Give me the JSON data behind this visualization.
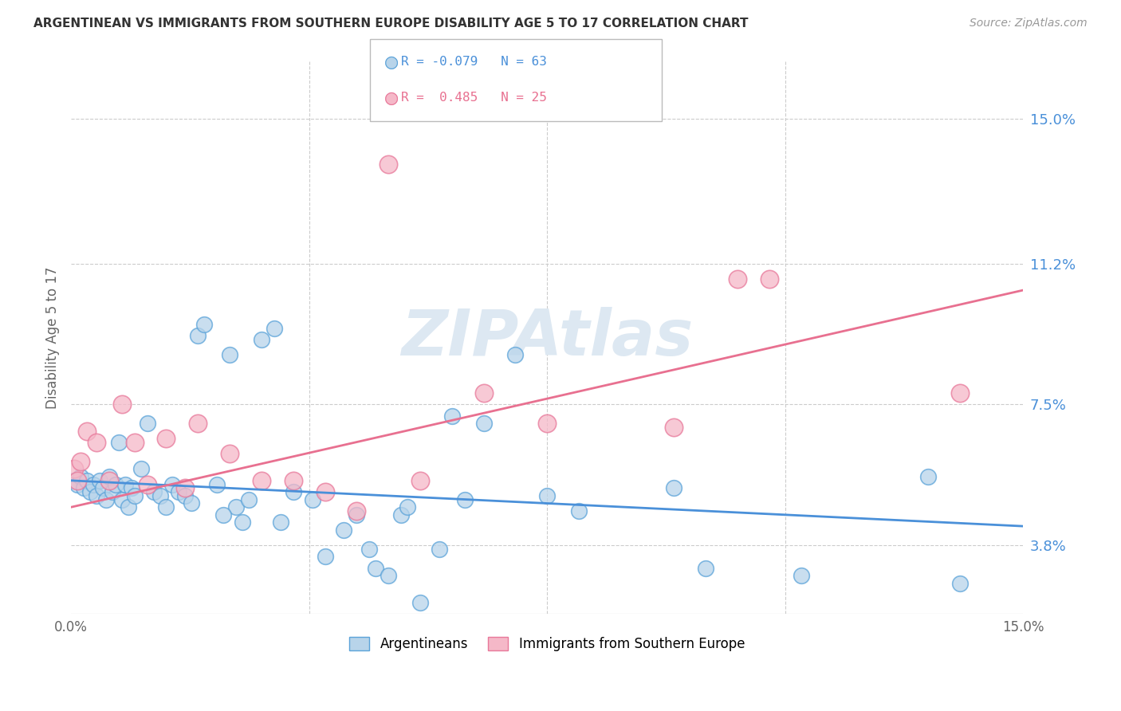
{
  "title": "ARGENTINEAN VS IMMIGRANTS FROM SOUTHERN EUROPE DISABILITY AGE 5 TO 17 CORRELATION CHART",
  "source": "Source: ZipAtlas.com",
  "ylabel": "Disability Age 5 to 17",
  "ytick_labels": [
    "3.8%",
    "7.5%",
    "11.2%",
    "15.0%"
  ],
  "ytick_values": [
    3.8,
    7.5,
    11.2,
    15.0
  ],
  "xlim": [
    0.0,
    15.0
  ],
  "ylim": [
    2.0,
    16.5
  ],
  "color_blue_fill": "#b8d4ea",
  "color_pink_fill": "#f5b8c8",
  "color_blue_edge": "#5ba3d9",
  "color_pink_edge": "#e8789a",
  "color_blue_line": "#4a90d9",
  "color_pink_line": "#e87090",
  "arg_x": [
    0.05,
    0.1,
    0.15,
    0.2,
    0.25,
    0.3,
    0.35,
    0.4,
    0.45,
    0.5,
    0.55,
    0.6,
    0.65,
    0.7,
    0.75,
    0.8,
    0.85,
    0.9,
    0.95,
    1.0,
    1.1,
    1.2,
    1.3,
    1.4,
    1.5,
    1.6,
    1.7,
    1.8,
    1.9,
    2.0,
    2.1,
    2.3,
    2.5,
    2.6,
    2.8,
    3.0,
    3.2,
    3.5,
    3.8,
    4.0,
    4.3,
    4.5,
    4.8,
    5.0,
    5.2,
    5.5,
    5.8,
    6.0,
    6.5,
    7.0,
    7.5,
    8.0,
    9.5,
    10.0,
    11.5,
    13.5,
    14.0,
    3.3,
    4.7,
    5.3,
    6.2,
    2.7,
    2.4
  ],
  "arg_y": [
    5.5,
    5.4,
    5.6,
    5.3,
    5.5,
    5.2,
    5.4,
    5.1,
    5.5,
    5.3,
    5.0,
    5.6,
    5.2,
    5.4,
    6.5,
    5.0,
    5.4,
    4.8,
    5.3,
    5.1,
    5.8,
    7.0,
    5.2,
    5.1,
    4.8,
    5.4,
    5.2,
    5.1,
    4.9,
    9.3,
    9.6,
    5.4,
    8.8,
    4.8,
    5.0,
    9.2,
    9.5,
    5.2,
    5.0,
    3.5,
    4.2,
    4.6,
    3.2,
    3.0,
    4.6,
    2.3,
    3.7,
    7.2,
    7.0,
    8.8,
    5.1,
    4.7,
    5.3,
    3.2,
    3.0,
    5.6,
    2.8,
    4.4,
    3.7,
    4.8,
    5.0,
    4.4,
    4.6
  ],
  "se_x": [
    0.05,
    0.1,
    0.15,
    0.25,
    0.4,
    0.6,
    0.8,
    1.0,
    1.2,
    1.5,
    1.8,
    2.0,
    2.5,
    3.0,
    3.5,
    4.0,
    4.5,
    5.5,
    6.5,
    7.5,
    9.5,
    10.5,
    11.0,
    14.0,
    5.0
  ],
  "se_y": [
    5.8,
    5.5,
    6.0,
    6.8,
    6.5,
    5.5,
    7.5,
    6.5,
    5.4,
    6.6,
    5.3,
    7.0,
    6.2,
    5.5,
    5.5,
    5.2,
    4.7,
    5.5,
    7.8,
    7.0,
    6.9,
    10.8,
    10.8,
    7.8,
    13.8
  ],
  "arg_line_x": [
    0.0,
    15.0
  ],
  "arg_line_y": [
    5.5,
    4.3
  ],
  "se_line_x": [
    0.0,
    15.0
  ],
  "se_line_y": [
    4.8,
    10.5
  ],
  "legend_r1": "R = -0.079",
  "legend_n1": "N = 63",
  "legend_r2": "R =  0.485",
  "legend_n2": "N = 25",
  "watermark": "ZIPAtlas"
}
